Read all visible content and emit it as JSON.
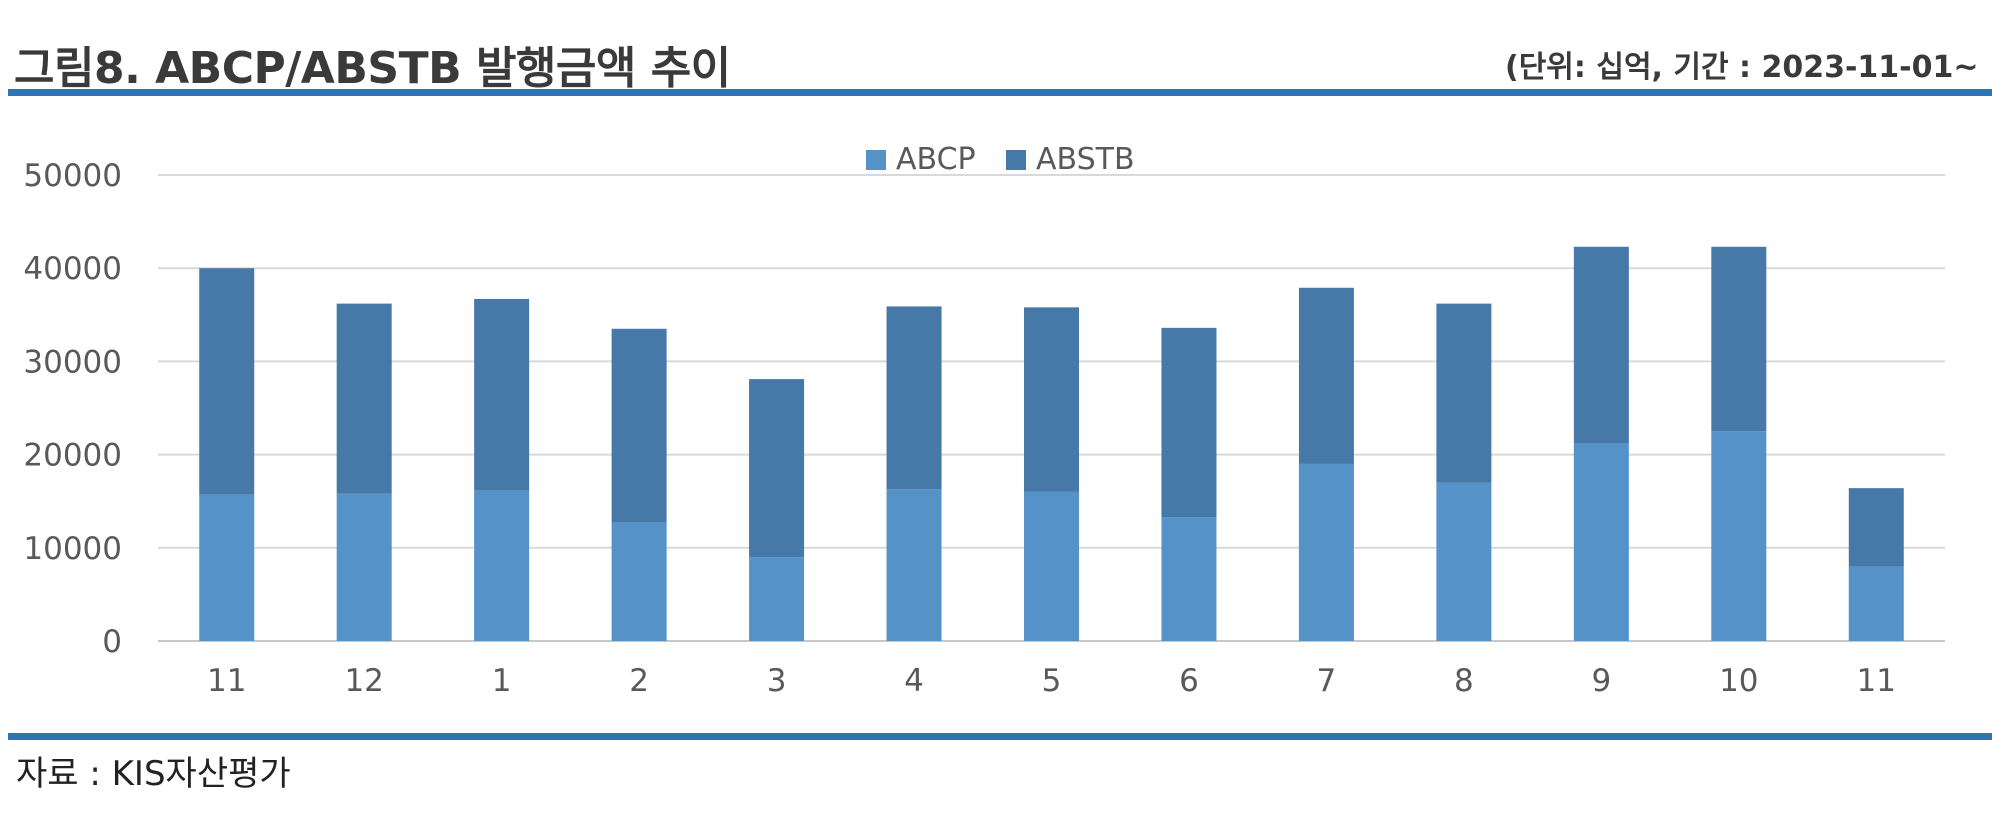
{
  "header": {
    "title": "그림8. ABCP/ABSTB 발행금액 추이",
    "unit": "(단위: 십억, 기간 : 2023-11-01~"
  },
  "footer": {
    "source": "자료 : KIS자산평가"
  },
  "colors": {
    "rule": "#2e75b6",
    "abcp": "#5592c8",
    "abstb": "#4678a8"
  },
  "chart_data": {
    "type": "bar",
    "stacked": true,
    "categories": [
      "11",
      "12",
      "1",
      "2",
      "3",
      "4",
      "5",
      "6",
      "7",
      "8",
      "9",
      "10",
      "11"
    ],
    "series": [
      {
        "name": "ABCP",
        "values": [
          15700,
          15800,
          16200,
          12700,
          9000,
          16300,
          16000,
          13300,
          19000,
          17000,
          21200,
          22500,
          8000
        ]
      },
      {
        "name": "ABSTB",
        "values": [
          24300,
          20400,
          20500,
          20800,
          19100,
          19600,
          19800,
          20300,
          18900,
          19200,
          21100,
          19800,
          8400
        ]
      }
    ],
    "ylim": [
      0,
      50000
    ],
    "yticks": [
      0,
      10000,
      20000,
      30000,
      40000,
      50000
    ],
    "grid": true,
    "legend": "top-center"
  }
}
